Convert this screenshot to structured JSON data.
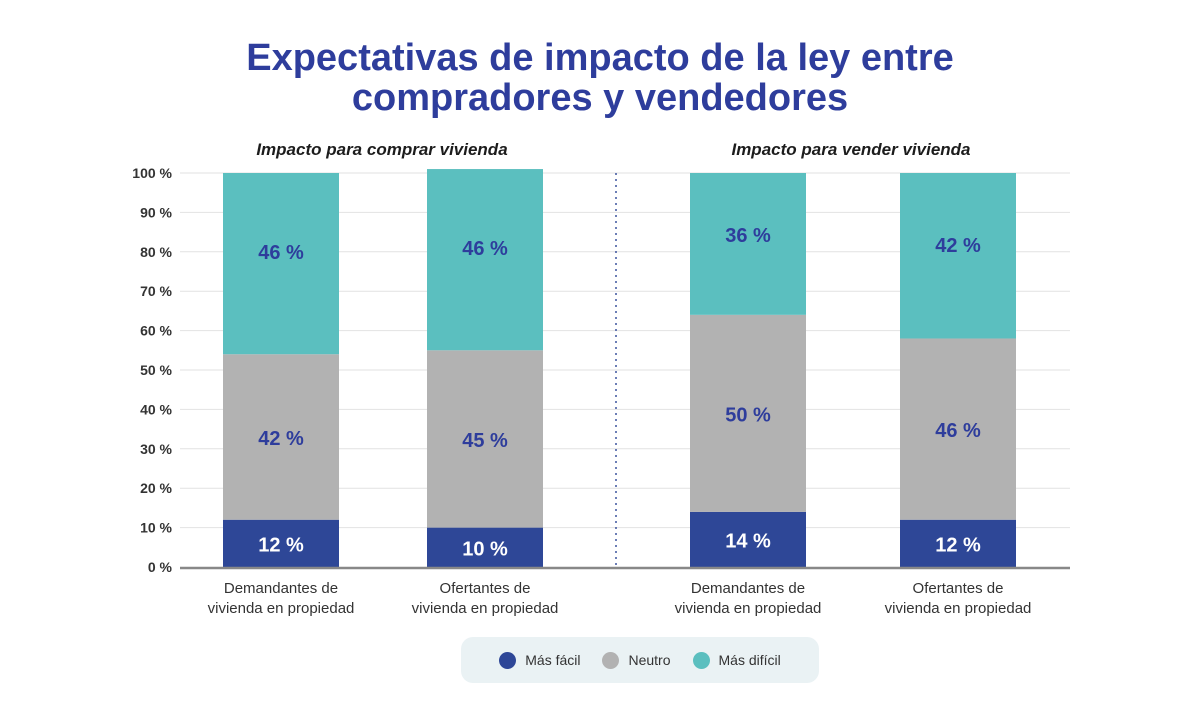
{
  "title_line1": "Expectativas de impacto de la ley entre",
  "title_line2": "compradores y vendedores",
  "chart_data": {
    "type": "bar",
    "stacked": true,
    "panels": [
      {
        "title": "Impacto para comprar vivienda"
      },
      {
        "title": "Impacto para vender vivienda"
      }
    ],
    "categories": [
      [
        "Demandantes de",
        "vivienda en propiedad"
      ],
      [
        "Ofertantes de",
        "vivienda en propiedad"
      ],
      [
        "Demandantes de",
        "vivienda en propiedad"
      ],
      [
        "Ofertantes de",
        "vivienda en propiedad"
      ]
    ],
    "series": [
      {
        "name": "Más fácil",
        "color": "#2e4797",
        "label_color": "#ffffff",
        "values": [
          12,
          10,
          14,
          12
        ],
        "labels": [
          "12 %",
          "10 %",
          "14 %",
          "12 %"
        ]
      },
      {
        "name": "Neutro",
        "color": "#b2b2b2",
        "label_color": "#2e3d9c",
        "values": [
          42,
          45,
          50,
          46
        ],
        "labels": [
          "42 %",
          "45 %",
          "50 %",
          "46 %"
        ]
      },
      {
        "name": "Más difícil",
        "color": "#5bbfbf",
        "label_color": "#2e3d9c",
        "values": [
          46,
          46,
          36,
          42
        ],
        "labels": [
          "46 %",
          "46 %",
          "36 %",
          "42 %"
        ]
      }
    ],
    "ylim": [
      0,
      100
    ],
    "yticks": [
      0,
      10,
      20,
      30,
      40,
      50,
      60,
      70,
      80,
      90,
      100
    ],
    "ytick_labels": [
      "0 %",
      "10 %",
      "20 %",
      "30 %",
      "40 %",
      "50 %",
      "60 %",
      "70 %",
      "80 %",
      "90 %",
      "100 %"
    ],
    "grid": true,
    "legend_position": "bottom"
  }
}
